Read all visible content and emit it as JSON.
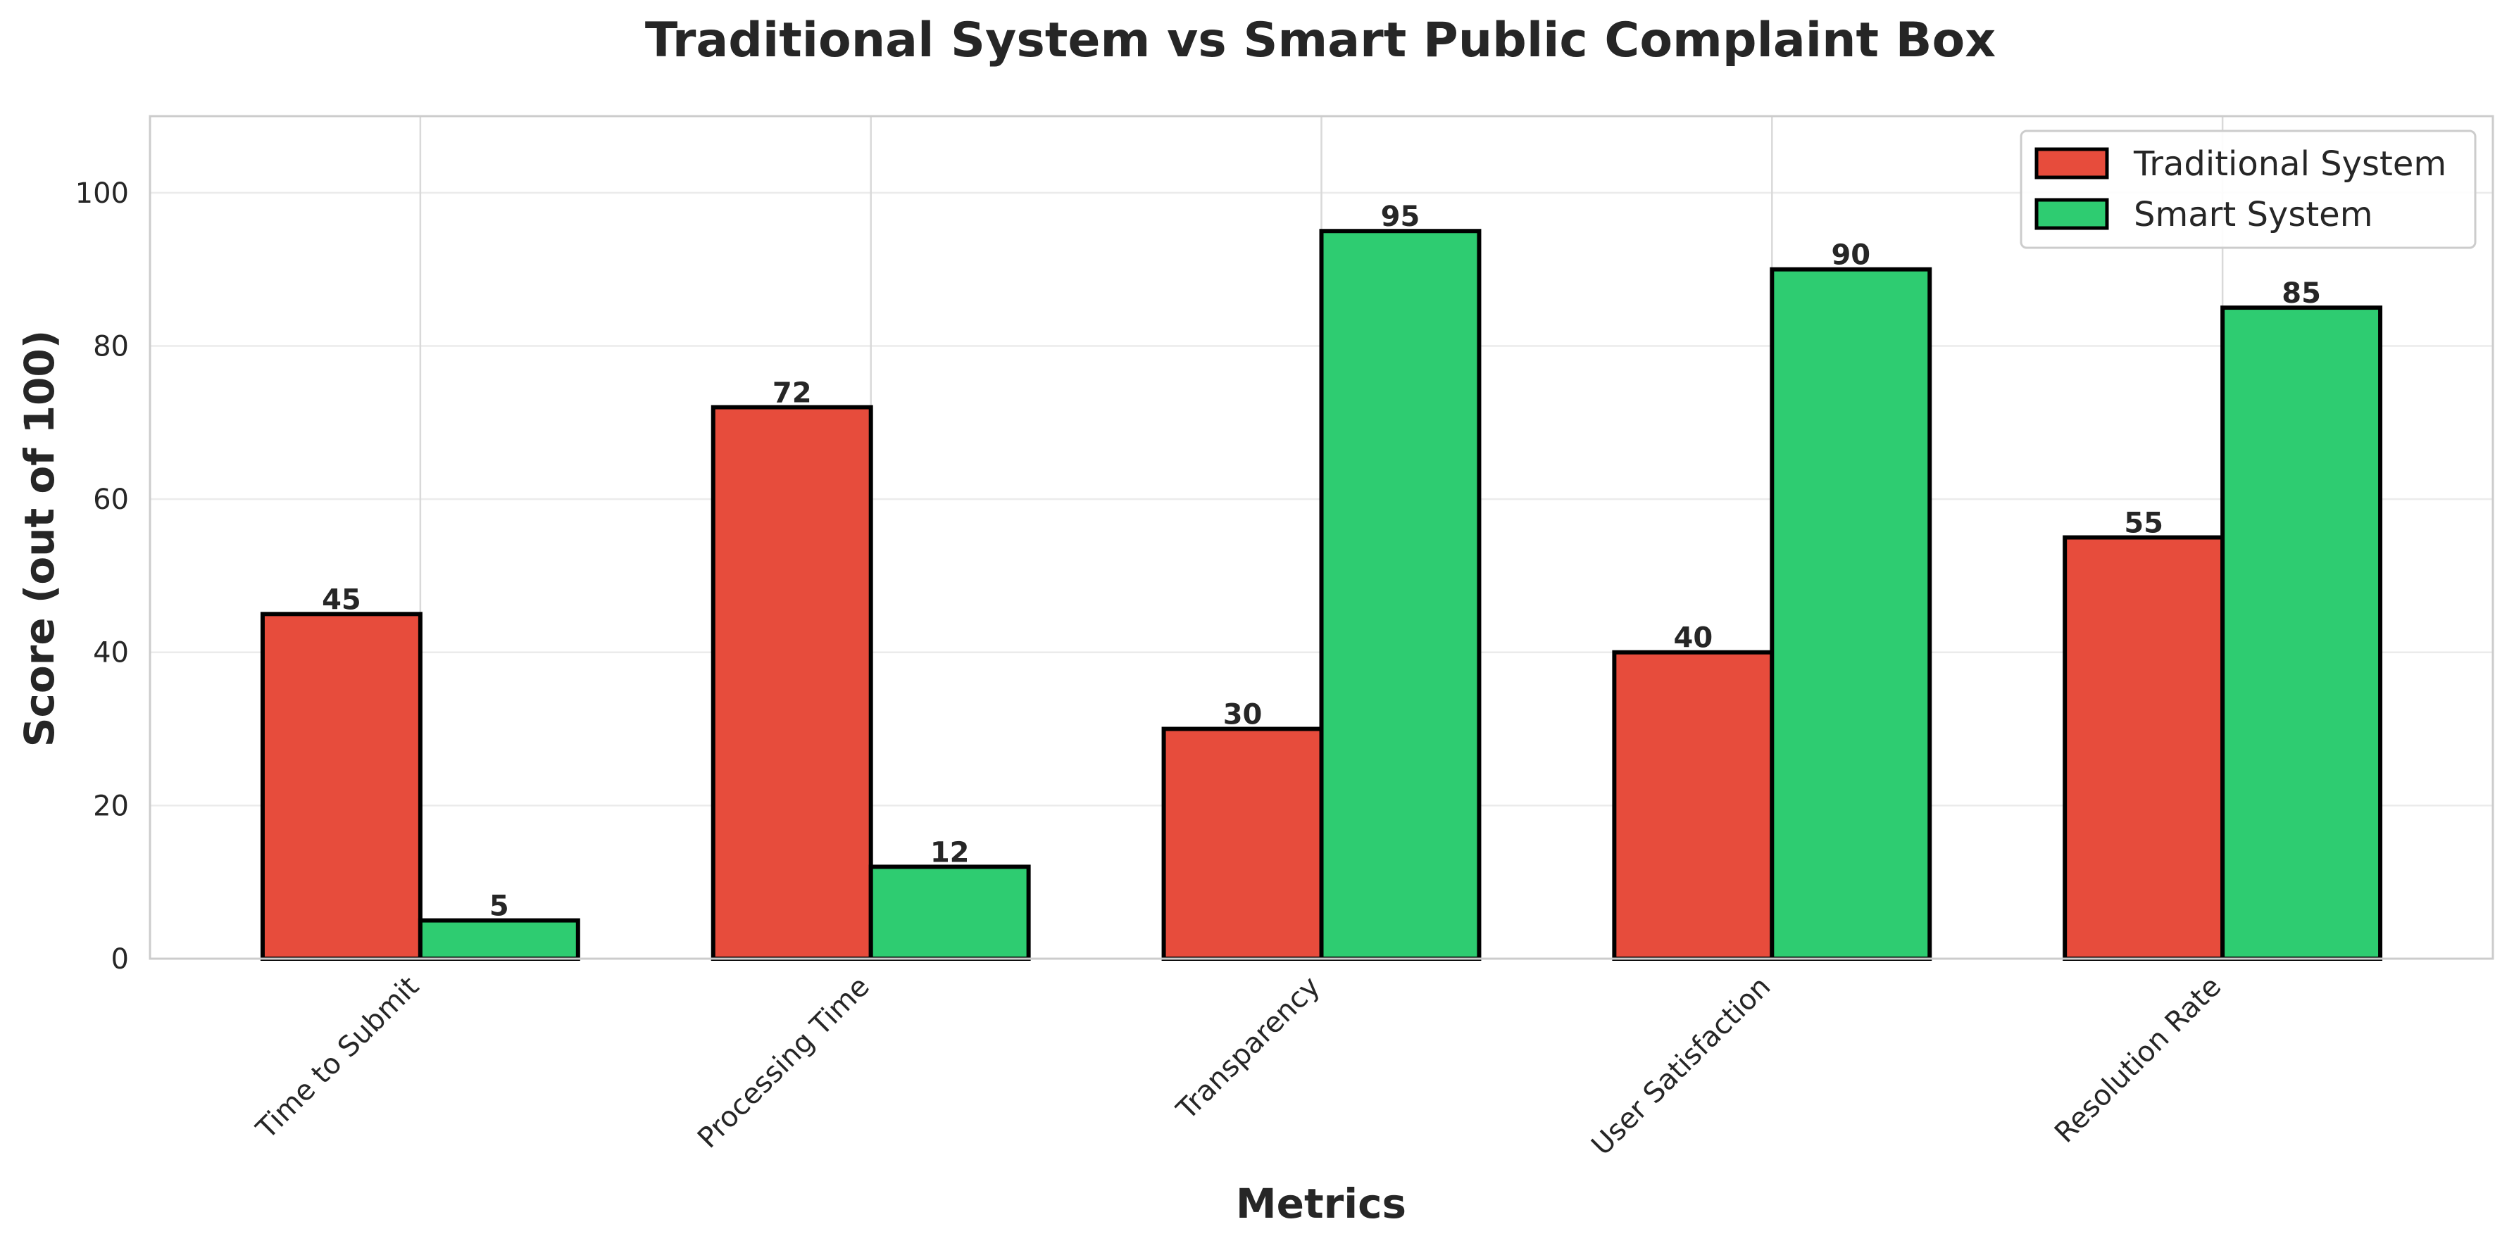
{
  "chart_data": {
    "type": "bar",
    "title": "Traditional System vs Smart Public Complaint Box",
    "xlabel": "Metrics",
    "ylabel": "Score (out of 100)",
    "categories": [
      "Time to Submit",
      "Processing Time",
      "Transparency",
      "User Satisfaction",
      "Resolution Rate"
    ],
    "series": [
      {
        "name": "Traditional System",
        "values": [
          45,
          72,
          30,
          40,
          55
        ],
        "color": "#e74c3c"
      },
      {
        "name": "Smart System",
        "values": [
          5,
          12,
          95,
          90,
          85
        ],
        "color": "#2ecc71"
      }
    ],
    "ylim": [
      0,
      110
    ],
    "yticks": [
      0,
      20,
      40,
      60,
      80,
      100
    ],
    "grid": true,
    "legend_position": "top-right",
    "data_labels": true
  }
}
